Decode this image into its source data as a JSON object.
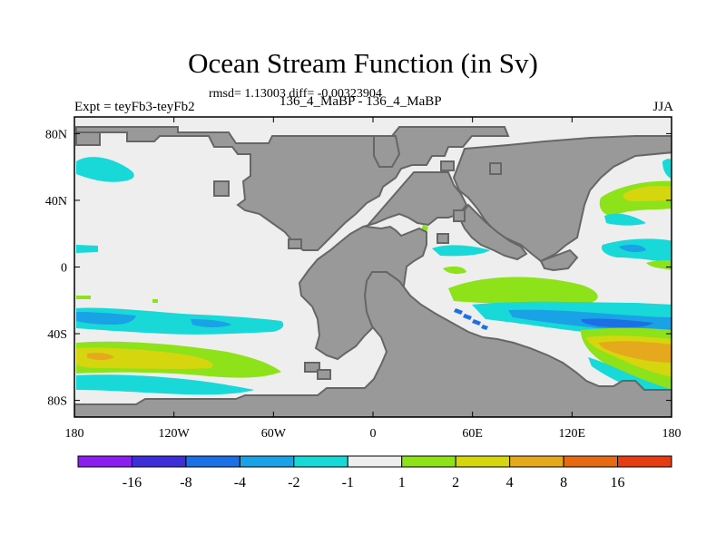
{
  "title": "Ocean Stream Function (in Sv)",
  "stats_text": "rmsd= 1.13003 diff= -0.00323904",
  "subtitle": "136_4_MaBP - 136_4_MaBP",
  "left_label": "Expt = teyFb3-teyFb2",
  "right_label": "JJA",
  "chart_data": {
    "type": "heatmap",
    "title": "Ocean Stream Function (in Sv)",
    "xlabel": "",
    "ylabel": "",
    "xlim": [
      -180,
      180
    ],
    "ylim": [
      -90,
      90
    ],
    "x_ticks": [
      {
        "value": -180,
        "label": "180"
      },
      {
        "value": -120,
        "label": "120W"
      },
      {
        "value": -60,
        "label": "60W"
      },
      {
        "value": 0,
        "label": "0"
      },
      {
        "value": 60,
        "label": "60E"
      },
      {
        "value": 120,
        "label": "120E"
      },
      {
        "value": 180,
        "label": "180"
      }
    ],
    "y_ticks": [
      {
        "value": 80,
        "label": "80N"
      },
      {
        "value": 40,
        "label": "40N"
      },
      {
        "value": 0,
        "label": "0"
      },
      {
        "value": -40,
        "label": "40S"
      },
      {
        "value": -80,
        "label": "80S"
      }
    ],
    "colorbar": {
      "labels": [
        "-16",
        "-8",
        "-4",
        "-2",
        "-1",
        "1",
        "2",
        "4",
        "8",
        "16"
      ],
      "colors": [
        "#8a1ff0",
        "#3c2ed8",
        "#1b70e6",
        "#1aa2e6",
        "#18d8d8",
        "#eeeeee",
        "#8ee21a",
        "#d6d60e",
        "#e6a81c",
        "#e66a14",
        "#e63c14"
      ]
    },
    "land_color": "#999999",
    "ocean_color": "#eeeeee"
  }
}
